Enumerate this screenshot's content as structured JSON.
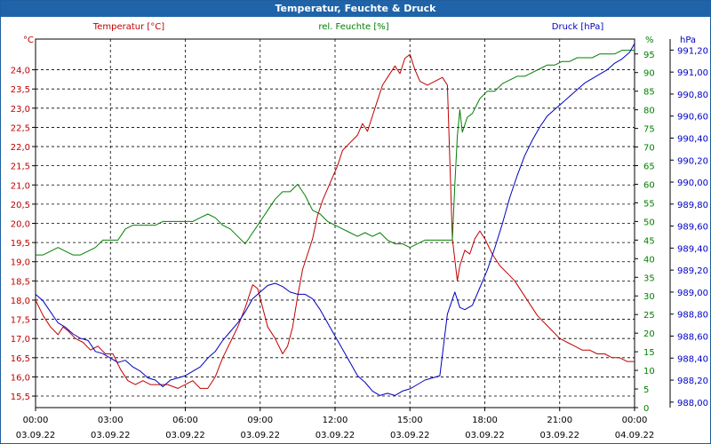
{
  "window": {
    "title": "Temperatur, Feuchte & Druck"
  },
  "chart_data": {
    "type": "line",
    "title": "Temperatur, Feuchte & Druck",
    "x_ticks": [
      {
        "time": "00:00",
        "date": "03.09.22"
      },
      {
        "time": "03:00",
        "date": "03.09.22"
      },
      {
        "time": "06:00",
        "date": "03.09.22"
      },
      {
        "time": "09:00",
        "date": "03.09.22"
      },
      {
        "time": "12:00",
        "date": "03.09.22"
      },
      {
        "time": "15:00",
        "date": "03.09.22"
      },
      {
        "time": "18:00",
        "date": "03.09.22"
      },
      {
        "time": "21:00",
        "date": "03.09.22"
      },
      {
        "time": "00:00",
        "date": "04.09.22"
      }
    ],
    "x_unit": "hours",
    "xlim": [
      0,
      24
    ],
    "grid": true,
    "axes": {
      "temperature": {
        "label": "Temperatur [°C]",
        "unit": "°C",
        "color": "#c00000",
        "ylim": [
          15.2,
          24.8
        ],
        "ticks": [
          "15,5",
          "16,0",
          "16,5",
          "17,0",
          "17,5",
          "18,0",
          "18,5",
          "19,0",
          "19,5",
          "20,0",
          "20,5",
          "21,0",
          "21,5",
          "22,0",
          "22,5",
          "23,0",
          "23,5",
          "24,0"
        ],
        "tick_values": [
          15.5,
          16.0,
          16.5,
          17.0,
          17.5,
          18.0,
          18.5,
          19.0,
          19.5,
          20.0,
          20.5,
          21.0,
          21.5,
          22.0,
          22.5,
          23.0,
          23.5,
          24.0
        ]
      },
      "humidity": {
        "label": "rel. Feuchte [%]",
        "unit": "%",
        "color": "#008000",
        "ylim": [
          0,
          99
        ],
        "ticks": [
          "0",
          "5",
          "10",
          "15",
          "20",
          "25",
          "30",
          "35",
          "40",
          "45",
          "50",
          "55",
          "60",
          "65",
          "70",
          "75",
          "80",
          "85",
          "90",
          "95"
        ],
        "tick_values": [
          0,
          5,
          10,
          15,
          20,
          25,
          30,
          35,
          40,
          45,
          50,
          55,
          60,
          65,
          70,
          75,
          80,
          85,
          90,
          95
        ]
      },
      "pressure": {
        "label": "Druck [hPa]",
        "unit": "hPa",
        "color": "#0000c0",
        "ylim": [
          987.95,
          991.3
        ],
        "ticks": [
          "988,00",
          "988,20",
          "988,40",
          "988,60",
          "988,80",
          "989,00",
          "989,20",
          "989,40",
          "989,60",
          "989,80",
          "990,00",
          "990,20",
          "990,40",
          "990,60",
          "990,80",
          "991,00",
          "991,20"
        ],
        "tick_values": [
          988.0,
          988.2,
          988.4,
          988.6,
          988.8,
          989.0,
          989.2,
          989.4,
          989.6,
          989.8,
          990.0,
          990.2,
          990.4,
          990.6,
          990.8,
          991.0,
          991.2
        ]
      }
    },
    "series": [
      {
        "name": "Temperatur [°C]",
        "axis": "temperature",
        "color": "#c00000",
        "x": [
          0.0,
          0.3,
          0.6,
          0.9,
          1.1,
          1.3,
          1.6,
          1.9,
          2.2,
          2.5,
          2.8,
          3.1,
          3.4,
          3.7,
          4.0,
          4.3,
          4.6,
          5.0,
          5.3,
          5.7,
          6.0,
          6.3,
          6.6,
          6.9,
          7.2,
          7.5,
          7.8,
          8.1,
          8.4,
          8.7,
          8.9,
          9.1,
          9.3,
          9.6,
          9.9,
          10.1,
          10.3,
          10.5,
          10.7,
          10.9,
          11.1,
          11.3,
          11.5,
          11.7,
          11.9,
          12.1,
          12.3,
          12.6,
          12.9,
          13.1,
          13.3,
          13.5,
          13.7,
          13.9,
          14.1,
          14.4,
          14.6,
          14.8,
          15.0,
          15.2,
          15.4,
          15.7,
          16.0,
          16.3,
          16.5,
          16.7,
          16.9,
          17.0,
          17.2,
          17.4,
          17.6,
          17.8,
          18.0,
          18.3,
          18.6,
          18.9,
          19.2,
          19.5,
          19.8,
          20.1,
          20.4,
          20.7,
          21.0,
          21.3,
          21.6,
          21.9,
          22.2,
          22.5,
          22.8,
          23.1,
          23.4,
          23.7,
          24.0
        ],
        "y": [
          18.0,
          17.6,
          17.3,
          17.1,
          17.3,
          17.2,
          17.0,
          16.9,
          16.7,
          16.8,
          16.6,
          16.6,
          16.2,
          15.9,
          15.8,
          15.9,
          15.8,
          15.8,
          15.8,
          15.7,
          15.8,
          15.9,
          15.7,
          15.7,
          16.0,
          16.5,
          16.9,
          17.3,
          17.8,
          18.4,
          18.3,
          17.8,
          17.3,
          17.0,
          16.6,
          16.8,
          17.3,
          18.1,
          18.8,
          19.2,
          19.6,
          20.2,
          20.6,
          20.9,
          21.2,
          21.5,
          21.9,
          22.1,
          22.3,
          22.6,
          22.4,
          22.8,
          23.2,
          23.6,
          23.8,
          24.1,
          23.9,
          24.3,
          24.4,
          24.0,
          23.7,
          23.6,
          23.7,
          23.8,
          23.6,
          19.6,
          18.5,
          18.9,
          19.3,
          19.2,
          19.6,
          19.8,
          19.6,
          19.2,
          18.9,
          18.7,
          18.5,
          18.2,
          17.9,
          17.6,
          17.4,
          17.2,
          17.0,
          16.9,
          16.8,
          16.7,
          16.7,
          16.6,
          16.6,
          16.5,
          16.5,
          16.4,
          16.4
        ]
      },
      {
        "name": "rel. Feuchte [%]",
        "axis": "humidity",
        "color": "#008000",
        "x": [
          0.0,
          0.3,
          0.6,
          0.9,
          1.2,
          1.5,
          1.8,
          2.1,
          2.4,
          2.7,
          3.0,
          3.3,
          3.6,
          3.9,
          4.2,
          4.5,
          4.8,
          5.1,
          5.4,
          5.7,
          6.0,
          6.3,
          6.6,
          6.9,
          7.2,
          7.5,
          7.8,
          8.1,
          8.4,
          8.7,
          9.0,
          9.3,
          9.6,
          9.9,
          10.2,
          10.5,
          10.8,
          11.1,
          11.4,
          11.7,
          12.0,
          12.3,
          12.6,
          12.9,
          13.2,
          13.5,
          13.8,
          14.1,
          14.4,
          14.7,
          15.0,
          15.3,
          15.6,
          15.9,
          16.2,
          16.5,
          16.7,
          16.8,
          16.9,
          17.0,
          17.1,
          17.3,
          17.5,
          17.8,
          18.1,
          18.4,
          18.7,
          19.0,
          19.3,
          19.6,
          19.9,
          20.2,
          20.5,
          20.8,
          21.1,
          21.4,
          21.7,
          22.0,
          22.3,
          22.6,
          22.9,
          23.2,
          23.5,
          23.8,
          24.0
        ],
        "y": [
          41,
          41,
          42,
          43,
          42,
          41,
          41,
          42,
          43,
          45,
          45,
          45,
          48,
          49,
          49,
          49,
          49,
          50,
          50,
          50,
          50,
          50,
          51,
          52,
          51,
          49,
          48,
          46,
          44,
          47,
          50,
          53,
          56,
          58,
          58,
          60,
          57,
          53,
          52,
          50,
          49,
          48,
          47,
          46,
          47,
          46,
          47,
          45,
          44,
          44,
          43,
          44,
          45,
          45,
          45,
          45,
          45,
          60,
          73,
          80,
          74,
          78,
          79,
          83,
          85,
          85,
          87,
          88,
          89,
          89,
          90,
          91,
          92,
          92,
          93,
          93,
          94,
          94,
          94,
          95,
          95,
          95,
          96,
          96,
          96
        ]
      },
      {
        "name": "Druck [hPa]",
        "axis": "pressure",
        "color": "#0000c0",
        "x": [
          0.0,
          0.3,
          0.6,
          0.9,
          1.2,
          1.5,
          1.8,
          2.1,
          2.4,
          2.7,
          3.0,
          3.3,
          3.6,
          3.9,
          4.2,
          4.5,
          4.8,
          5.1,
          5.4,
          5.7,
          6.0,
          6.3,
          6.6,
          6.9,
          7.2,
          7.5,
          7.8,
          8.1,
          8.4,
          8.7,
          9.0,
          9.3,
          9.6,
          9.9,
          10.2,
          10.5,
          10.8,
          11.1,
          11.4,
          11.7,
          12.0,
          12.3,
          12.6,
          12.9,
          13.2,
          13.5,
          13.8,
          14.1,
          14.4,
          14.7,
          15.0,
          15.3,
          15.6,
          15.9,
          16.2,
          16.5,
          16.8,
          17.0,
          17.2,
          17.5,
          17.8,
          18.1,
          18.4,
          18.7,
          19.0,
          19.3,
          19.6,
          19.9,
          20.2,
          20.5,
          20.8,
          21.1,
          21.4,
          21.7,
          22.0,
          22.3,
          22.6,
          22.9,
          23.2,
          23.5,
          23.8,
          24.0
        ],
        "y": [
          988.98,
          988.92,
          988.82,
          988.72,
          988.68,
          988.62,
          988.58,
          988.56,
          988.46,
          988.44,
          988.4,
          988.36,
          988.38,
          988.32,
          988.28,
          988.22,
          988.2,
          988.14,
          988.2,
          988.22,
          988.24,
          988.28,
          988.32,
          988.4,
          988.46,
          988.56,
          988.64,
          988.72,
          988.82,
          988.94,
          989.0,
          989.06,
          989.08,
          989.05,
          989.0,
          988.98,
          988.98,
          988.94,
          988.84,
          988.72,
          988.6,
          988.48,
          988.36,
          988.24,
          988.18,
          988.1,
          988.06,
          988.08,
          988.06,
          988.1,
          988.12,
          988.16,
          988.2,
          988.22,
          988.24,
          988.8,
          989.0,
          988.86,
          988.84,
          988.88,
          989.04,
          989.2,
          989.4,
          989.62,
          989.86,
          990.06,
          990.24,
          990.38,
          990.5,
          990.6,
          990.66,
          990.72,
          990.78,
          990.84,
          990.9,
          990.94,
          990.98,
          991.02,
          991.08,
          991.12,
          991.18,
          991.26
        ]
      }
    ]
  }
}
